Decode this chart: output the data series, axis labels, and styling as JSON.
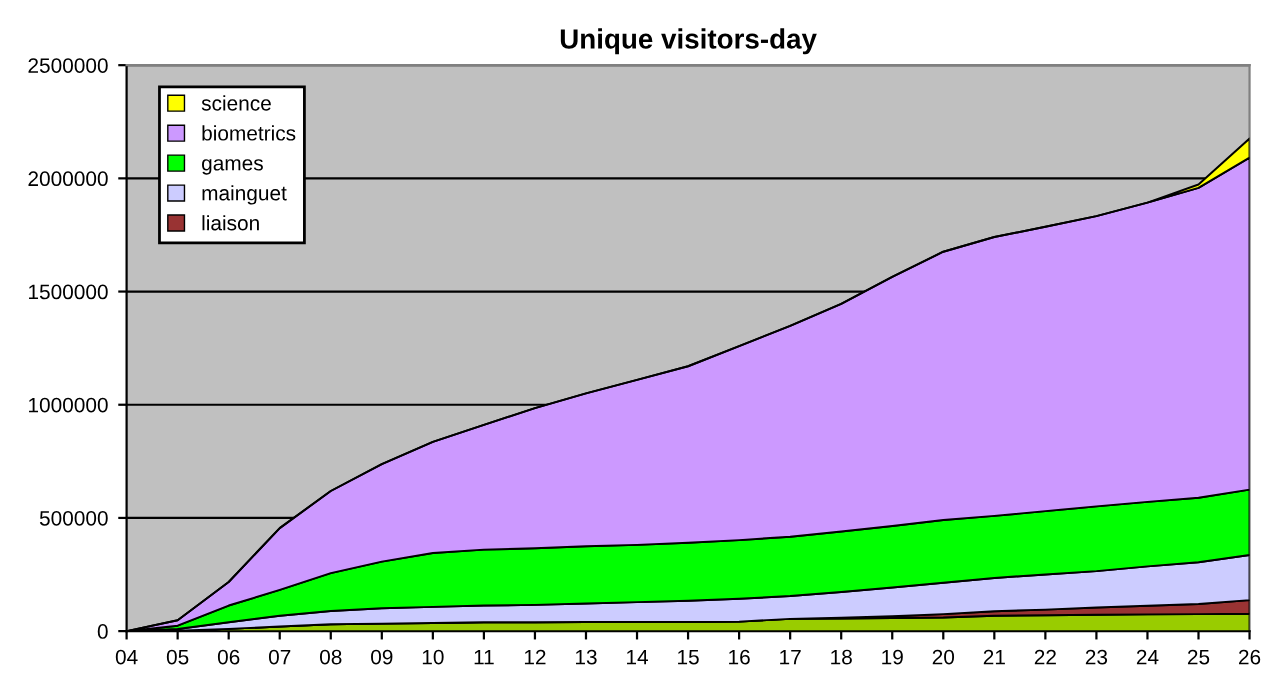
{
  "chart_data": {
    "type": "area",
    "stacked": true,
    "title": "Unique visitors-day",
    "x": [
      4,
      5,
      6,
      7,
      8,
      9,
      10,
      11,
      12,
      13,
      14,
      15,
      16,
      17,
      18,
      19,
      20,
      21,
      22,
      23,
      24,
      25,
      26
    ],
    "xlim": [
      4,
      26
    ],
    "xticks": [
      {
        "value": 4,
        "label": "04"
      },
      {
        "value": 5,
        "label": "05"
      },
      {
        "value": 6,
        "label": "06"
      },
      {
        "value": 7,
        "label": "07"
      },
      {
        "value": 8,
        "label": "08"
      },
      {
        "value": 9,
        "label": "09"
      },
      10,
      11,
      12,
      13,
      14,
      15,
      16,
      17,
      18,
      19,
      20,
      21,
      22,
      23,
      24,
      25,
      26
    ],
    "ylim": [
      0,
      2500000
    ],
    "yticks": [
      0,
      500000,
      1000000,
      1500000,
      2000000,
      2500000
    ],
    "grid": "y",
    "legend": "top left",
    "series": [
      {
        "color": "#99cc00",
        "values": [
          0,
          2000,
          10000,
          20000,
          30000,
          33000,
          36000,
          39000,
          39000,
          40000,
          40000,
          40000,
          42000,
          54000,
          56000,
          58000,
          60000,
          68000,
          70000,
          72000,
          74000,
          75000,
          77000
        ]
      },
      {
        "name": "liaison",
        "color": "#993333",
        "values": [
          0,
          0,
          0,
          0,
          0,
          0,
          0,
          0,
          0,
          0,
          0,
          0,
          0,
          0,
          3000,
          8000,
          15000,
          20000,
          25000,
          32000,
          38000,
          45000,
          60000
        ]
      },
      {
        "name": "mainguet",
        "color": "#ccccff",
        "values": [
          0,
          7000,
          29000,
          48000,
          59000,
          68000,
          71000,
          74000,
          77000,
          82000,
          88000,
          94000,
          101000,
          101000,
          114000,
          127000,
          139000,
          147000,
          155000,
          161000,
          174000,
          184000,
          199000
        ]
      },
      {
        "name": "games",
        "color": "#00ff00",
        "values": [
          0,
          15000,
          74000,
          114000,
          167000,
          206000,
          238000,
          247000,
          250000,
          253000,
          253000,
          256000,
          259000,
          262000,
          267000,
          271000,
          277000,
          274000,
          280000,
          286000,
          285000,
          285000,
          289000
        ]
      },
      {
        "name": "biometrics",
        "color": "#cc99ff",
        "values": [
          0,
          24000,
          104000,
          273000,
          363000,
          431000,
          491000,
          551000,
          619000,
          675000,
          729000,
          780000,
          857000,
          931000,
          1006000,
          1101000,
          1185000,
          1232000,
          1256000,
          1282000,
          1322000,
          1369000,
          1467000
        ]
      },
      {
        "name": "science",
        "color": "#ffff00",
        "values": [
          0,
          0,
          0,
          0,
          0,
          0,
          0,
          0,
          0,
          0,
          0,
          0,
          0,
          0,
          0,
          0,
          0,
          0,
          0,
          0,
          0,
          15000,
          84000
        ]
      }
    ]
  }
}
